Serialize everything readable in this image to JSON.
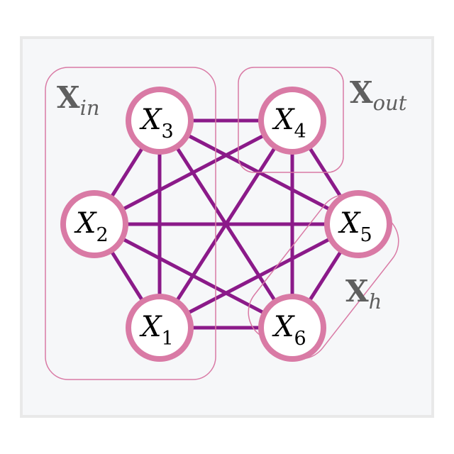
{
  "colors": {
    "panel_bg": "#f6f7f9",
    "panel_border": "#e9e9e9",
    "edge": "#8b1a89",
    "node_stroke": "#d97aa5",
    "node_fill": "#ffffff",
    "group_stroke": "#d97aa5",
    "group_label": "#5f5f5f"
  },
  "nodes": [
    {
      "id": "x1",
      "base": "X",
      "sub": "1"
    },
    {
      "id": "x2",
      "base": "X",
      "sub": "2"
    },
    {
      "id": "x3",
      "base": "X",
      "sub": "3"
    },
    {
      "id": "x4",
      "base": "X",
      "sub": "4"
    },
    {
      "id": "x5",
      "base": "X",
      "sub": "5"
    },
    {
      "id": "x6",
      "base": "X",
      "sub": "6"
    }
  ],
  "edges": [
    [
      "x1",
      "x2"
    ],
    [
      "x1",
      "x3"
    ],
    [
      "x1",
      "x4"
    ],
    [
      "x1",
      "x5"
    ],
    [
      "x1",
      "x6"
    ],
    [
      "x2",
      "x3"
    ],
    [
      "x2",
      "x4"
    ],
    [
      "x2",
      "x5"
    ],
    [
      "x2",
      "x6"
    ],
    [
      "x3",
      "x4"
    ],
    [
      "x3",
      "x5"
    ],
    [
      "x3",
      "x6"
    ],
    [
      "x4",
      "x5"
    ],
    [
      "x4",
      "x6"
    ],
    [
      "x5",
      "x6"
    ]
  ],
  "groups": {
    "input": {
      "label": "X",
      "sub": "in",
      "members": [
        "x1",
        "x2",
        "x3"
      ]
    },
    "output": {
      "label": "X",
      "sub": "out",
      "members": [
        "x4"
      ]
    },
    "hidden": {
      "label": "X",
      "sub": "h",
      "members": [
        "x5",
        "x6"
      ]
    }
  }
}
